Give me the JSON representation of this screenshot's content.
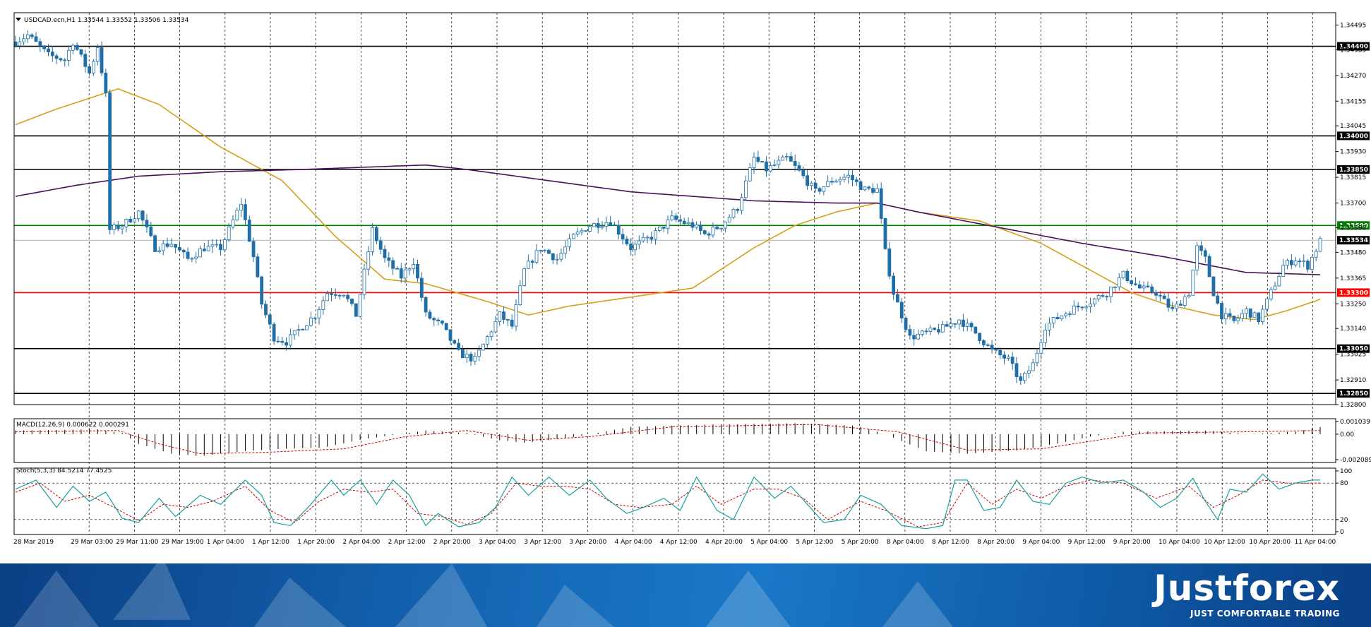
{
  "chart_data": [
    {
      "type": "candlestick",
      "title": "USDCAD.ecn,H1  1.33544 1.33552 1.33506 1.33534",
      "ylim": [
        1.328,
        1.3455
      ],
      "y_ticks": [
        "1.34495",
        "1.34385",
        "1.34270",
        "1.34155",
        "1.34045",
        "1.33930",
        "1.33815",
        "1.33700",
        "1.33590",
        "1.33480",
        "1.33365",
        "1.33250",
        "1.33140",
        "1.33025",
        "1.32910",
        "1.32800"
      ],
      "x_labels": [
        "28 Mar 2019",
        "29 Mar 03:00",
        "29 Mar 11:00",
        "29 Mar 19:00",
        "1 Apr 04:00",
        "1 Apr 12:00",
        "1 Apr 20:00",
        "2 Apr 04:00",
        "2 Apr 12:00",
        "2 Apr 20:00",
        "3 Apr 04:00",
        "3 Apr 12:00",
        "3 Apr 20:00",
        "4 Apr 04:00",
        "4 Apr 12:00",
        "4 Apr 20:00",
        "5 Apr 04:00",
        "5 Apr 12:00",
        "5 Apr 20:00",
        "8 Apr 04:00",
        "8 Apr 12:00",
        "8 Apr 20:00",
        "9 Apr 04:00",
        "9 Apr 12:00",
        "9 Apr 20:00",
        "10 Apr 04:00",
        "10 Apr 12:00",
        "10 Apr 20:00",
        "11 Apr 04:00"
      ],
      "current_price": "1.33534",
      "levels": [
        {
          "value": 1.344,
          "label": "1.34400",
          "color": "#000000"
        },
        {
          "value": 1.34,
          "label": "1.34000",
          "color": "#000000"
        },
        {
          "value": 1.3385,
          "label": "1.33850",
          "color": "#000000"
        },
        {
          "value": 1.336,
          "label": "1.33600",
          "color": "#008000"
        },
        {
          "value": 1.333,
          "label": "1.33300",
          "color": "#ff0000"
        },
        {
          "value": 1.3305,
          "label": "1.33050",
          "color": "#000000"
        },
        {
          "value": 1.3285,
          "label": "1.32850",
          "color": "#000000"
        }
      ],
      "price_path": [
        [
          0,
          1.3442
        ],
        [
          3,
          1.3445
        ],
        [
          8,
          1.3436
        ],
        [
          12,
          1.3434
        ],
        [
          14,
          1.3442
        ],
        [
          18,
          1.3428
        ],
        [
          20,
          1.344
        ],
        [
          22,
          1.3418
        ],
        [
          23,
          1.3358
        ],
        [
          26,
          1.336
        ],
        [
          30,
          1.3366
        ],
        [
          34,
          1.335
        ],
        [
          38,
          1.3352
        ],
        [
          42,
          1.3345
        ],
        [
          46,
          1.335
        ],
        [
          50,
          1.335
        ],
        [
          55,
          1.337
        ],
        [
          58,
          1.3346
        ],
        [
          60,
          1.3325
        ],
        [
          63,
          1.331
        ],
        [
          66,
          1.3308
        ],
        [
          70,
          1.3315
        ],
        [
          73,
          1.332
        ],
        [
          76,
          1.333
        ],
        [
          80,
          1.333
        ],
        [
          83,
          1.332
        ],
        [
          87,
          1.3358
        ],
        [
          90,
          1.3345
        ],
        [
          94,
          1.3337
        ],
        [
          97,
          1.3344
        ],
        [
          100,
          1.332
        ],
        [
          104,
          1.3315
        ],
        [
          108,
          1.3303
        ],
        [
          112,
          1.33
        ],
        [
          115,
          1.331
        ],
        [
          118,
          1.332
        ],
        [
          121,
          1.3315
        ],
        [
          124,
          1.334
        ],
        [
          128,
          1.335
        ],
        [
          132,
          1.3345
        ],
        [
          136,
          1.3355
        ],
        [
          140,
          1.336
        ],
        [
          145,
          1.3362
        ],
        [
          150,
          1.335
        ],
        [
          155,
          1.3355
        ],
        [
          160,
          1.3363
        ],
        [
          165,
          1.336
        ],
        [
          168,
          1.3356
        ],
        [
          172,
          1.336
        ],
        [
          176,
          1.3368
        ],
        [
          180,
          1.339
        ],
        [
          183,
          1.3385
        ],
        [
          188,
          1.339
        ],
        [
          191,
          1.3384
        ],
        [
          195,
          1.3375
        ],
        [
          199,
          1.338
        ],
        [
          203,
          1.3382
        ],
        [
          207,
          1.3376
        ],
        [
          210,
          1.3376
        ],
        [
          212,
          1.3348
        ],
        [
          214,
          1.333
        ],
        [
          218,
          1.331
        ],
        [
          222,
          1.3312
        ],
        [
          226,
          1.3314
        ],
        [
          230,
          1.3318
        ],
        [
          234,
          1.3312
        ],
        [
          238,
          1.3304
        ],
        [
          242,
          1.33
        ],
        [
          245,
          1.329
        ],
        [
          248,
          1.3298
        ],
        [
          251,
          1.3315
        ],
        [
          255,
          1.332
        ],
        [
          258,
          1.3323
        ],
        [
          262,
          1.3326
        ],
        [
          266,
          1.333
        ],
        [
          270,
          1.3338
        ],
        [
          274,
          1.3332
        ],
        [
          278,
          1.333
        ],
        [
          282,
          1.3322
        ],
        [
          286,
          1.333
        ],
        [
          288,
          1.335
        ],
        [
          290,
          1.3345
        ],
        [
          292,
          1.333
        ],
        [
          294,
          1.332
        ],
        [
          297,
          1.3317
        ],
        [
          300,
          1.3322
        ],
        [
          303,
          1.3318
        ],
        [
          306,
          1.333
        ],
        [
          309,
          1.3342
        ],
        [
          312,
          1.3345
        ],
        [
          315,
          1.3342
        ],
        [
          318,
          1.3353
        ]
      ],
      "moving_averages": [
        {
          "color": "#d4a017",
          "path": [
            [
              0,
              1.3405
            ],
            [
              10,
              1.3412
            ],
            [
              20,
              1.3418
            ],
            [
              25,
              1.3421
            ],
            [
              35,
              1.3414
            ],
            [
              50,
              1.3395
            ],
            [
              65,
              1.338
            ],
            [
              78,
              1.3355
            ],
            [
              90,
              1.3336
            ],
            [
              100,
              1.3334
            ],
            [
              115,
              1.3326
            ],
            [
              125,
              1.332
            ],
            [
              135,
              1.3324
            ],
            [
              150,
              1.3328
            ],
            [
              165,
              1.3332
            ],
            [
              180,
              1.335
            ],
            [
              190,
              1.336
            ],
            [
              200,
              1.3366
            ],
            [
              210,
              1.337
            ],
            [
              220,
              1.3366
            ],
            [
              235,
              1.3362
            ],
            [
              250,
              1.3352
            ],
            [
              262,
              1.334
            ],
            [
              272,
              1.333
            ],
            [
              280,
              1.3325
            ],
            [
              292,
              1.332
            ],
            [
              302,
              1.3318
            ],
            [
              310,
              1.3322
            ],
            [
              318,
              1.3327
            ]
          ]
        },
        {
          "color": "#4b0f5e",
          "path": [
            [
              0,
              1.3373
            ],
            [
              15,
              1.3378
            ],
            [
              30,
              1.3382
            ],
            [
              50,
              1.3384
            ],
            [
              70,
              1.3385
            ],
            [
              100,
              1.3387
            ],
            [
              110,
              1.3385
            ],
            [
              130,
              1.338
            ],
            [
              150,
              1.3375
            ],
            [
              180,
              1.3371
            ],
            [
              200,
              1.337
            ],
            [
              210,
              1.337
            ],
            [
              220,
              1.3366
            ],
            [
              240,
              1.3359
            ],
            [
              260,
              1.3352
            ],
            [
              280,
              1.3346
            ],
            [
              300,
              1.3339
            ],
            [
              318,
              1.3338
            ]
          ]
        }
      ]
    },
    {
      "type": "bar",
      "title": "MACD(12,26,9) 0.000622 0.000291",
      "ylim": [
        -0.002089,
        0.001039
      ],
      "y_ticks": [
        "0.001039",
        "0.00",
        "-0.002089"
      ],
      "hist_path": [
        [
          0,
          0.0003
        ],
        [
          20,
          0.0004
        ],
        [
          26,
          0.0001
        ],
        [
          30,
          -0.0008
        ],
        [
          38,
          -0.0016
        ],
        [
          45,
          -0.0018
        ],
        [
          55,
          -0.0014
        ],
        [
          65,
          -0.0012
        ],
        [
          75,
          -0.0011
        ],
        [
          85,
          -0.0004
        ],
        [
          100,
          0.0003
        ],
        [
          110,
          0.0001
        ],
        [
          118,
          -0.0005
        ],
        [
          124,
          -0.0007
        ],
        [
          135,
          -0.0003
        ],
        [
          150,
          0.0006
        ],
        [
          170,
          0.0008
        ],
        [
          190,
          0.0009
        ],
        [
          205,
          0.0007
        ],
        [
          212,
          0.0
        ],
        [
          222,
          -0.0014
        ],
        [
          232,
          -0.0016
        ],
        [
          245,
          -0.0013
        ],
        [
          255,
          -0.0007
        ],
        [
          262,
          -0.0002
        ],
        [
          270,
          0.0002
        ],
        [
          290,
          0.0003
        ],
        [
          300,
          0.0
        ],
        [
          312,
          0.0002
        ],
        [
          318,
          0.0006
        ]
      ],
      "signal_path": [
        [
          0,
          0.0002
        ],
        [
          25,
          0.0003
        ],
        [
          35,
          -0.0008
        ],
        [
          45,
          -0.0016
        ],
        [
          60,
          -0.0015
        ],
        [
          80,
          -0.0012
        ],
        [
          95,
          -0.0002
        ],
        [
          110,
          0.0003
        ],
        [
          125,
          -0.0005
        ],
        [
          140,
          -0.0002
        ],
        [
          160,
          0.0006
        ],
        [
          195,
          0.0008
        ],
        [
          215,
          0.0002
        ],
        [
          232,
          -0.0013
        ],
        [
          250,
          -0.0012
        ],
        [
          275,
          0.0001
        ],
        [
          300,
          0.0002
        ],
        [
          318,
          0.0003
        ]
      ]
    },
    {
      "type": "line",
      "title": "Stoch(5,3,3) 84.5214 77.4525",
      "ylim": [
        0,
        100
      ],
      "y_ticks": [
        "100",
        "80",
        "20",
        "0"
      ],
      "main_path": [
        [
          0,
          70
        ],
        [
          5,
          85
        ],
        [
          10,
          40
        ],
        [
          14,
          75
        ],
        [
          18,
          50
        ],
        [
          22,
          65
        ],
        [
          26,
          22
        ],
        [
          30,
          15
        ],
        [
          35,
          55
        ],
        [
          39,
          25
        ],
        [
          45,
          60
        ],
        [
          50,
          45
        ],
        [
          56,
          85
        ],
        [
          60,
          60
        ],
        [
          63,
          15
        ],
        [
          67,
          10
        ],
        [
          72,
          45
        ],
        [
          77,
          85
        ],
        [
          80,
          60
        ],
        [
          84,
          85
        ],
        [
          88,
          45
        ],
        [
          92,
          85
        ],
        [
          96,
          60
        ],
        [
          100,
          10
        ],
        [
          103,
          30
        ],
        [
          108,
          8
        ],
        [
          113,
          15
        ],
        [
          117,
          40
        ],
        [
          121,
          90
        ],
        [
          125,
          60
        ],
        [
          130,
          90
        ],
        [
          135,
          60
        ],
        [
          140,
          85
        ],
        [
          144,
          55
        ],
        [
          149,
          30
        ],
        [
          153,
          40
        ],
        [
          158,
          55
        ],
        [
          162,
          35
        ],
        [
          166,
          90
        ],
        [
          171,
          35
        ],
        [
          175,
          20
        ],
        [
          180,
          90
        ],
        [
          185,
          55
        ],
        [
          189,
          75
        ],
        [
          193,
          45
        ],
        [
          197,
          15
        ],
        [
          202,
          20
        ],
        [
          206,
          60
        ],
        [
          211,
          45
        ],
        [
          216,
          10
        ],
        [
          222,
          5
        ],
        [
          226,
          10
        ],
        [
          229,
          85
        ],
        [
          232,
          85
        ],
        [
          236,
          35
        ],
        [
          240,
          40
        ],
        [
          244,
          85
        ],
        [
          248,
          50
        ],
        [
          252,
          45
        ],
        [
          256,
          80
        ],
        [
          260,
          90
        ],
        [
          265,
          80
        ],
        [
          270,
          85
        ],
        [
          275,
          65
        ],
        [
          279,
          40
        ],
        [
          283,
          55
        ],
        [
          287,
          88
        ],
        [
          290,
          50
        ],
        [
          293,
          20
        ],
        [
          296,
          70
        ],
        [
          300,
          65
        ],
        [
          304,
          95
        ],
        [
          308,
          70
        ],
        [
          312,
          80
        ],
        [
          316,
          85
        ]
      ],
      "signal_path": [
        [
          0,
          65
        ],
        [
          6,
          80
        ],
        [
          12,
          50
        ],
        [
          18,
          60
        ],
        [
          24,
          40
        ],
        [
          30,
          18
        ],
        [
          36,
          45
        ],
        [
          42,
          40
        ],
        [
          48,
          50
        ],
        [
          56,
          75
        ],
        [
          62,
          35
        ],
        [
          68,
          15
        ],
        [
          74,
          50
        ],
        [
          80,
          70
        ],
        [
          86,
          65
        ],
        [
          92,
          70
        ],
        [
          98,
          30
        ],
        [
          104,
          25
        ],
        [
          110,
          12
        ],
        [
          116,
          30
        ],
        [
          122,
          80
        ],
        [
          128,
          75
        ],
        [
          134,
          75
        ],
        [
          140,
          70
        ],
        [
          146,
          45
        ],
        [
          152,
          40
        ],
        [
          160,
          45
        ],
        [
          166,
          75
        ],
        [
          172,
          45
        ],
        [
          180,
          70
        ],
        [
          186,
          70
        ],
        [
          192,
          55
        ],
        [
          198,
          20
        ],
        [
          206,
          50
        ],
        [
          212,
          35
        ],
        [
          220,
          8
        ],
        [
          226,
          15
        ],
        [
          232,
          80
        ],
        [
          238,
          45
        ],
        [
          244,
          70
        ],
        [
          250,
          55
        ],
        [
          256,
          75
        ],
        [
          262,
          85
        ],
        [
          270,
          80
        ],
        [
          278,
          55
        ],
        [
          286,
          75
        ],
        [
          292,
          40
        ],
        [
          298,
          60
        ],
        [
          304,
          85
        ],
        [
          310,
          80
        ],
        [
          316,
          80
        ]
      ]
    }
  ],
  "footer": {
    "logo": "Justforex",
    "tagline": "JUST COMFORTABLE TRADING"
  },
  "colors": {
    "bull": "#ffffff",
    "bear": "#1f6ea8",
    "candle_outline": "#1f6ea8",
    "macd_hist": "#000000",
    "macd_signal": "#cc0000",
    "stoch_main": "#18a0a0",
    "stoch_signal": "#cc0000"
  }
}
